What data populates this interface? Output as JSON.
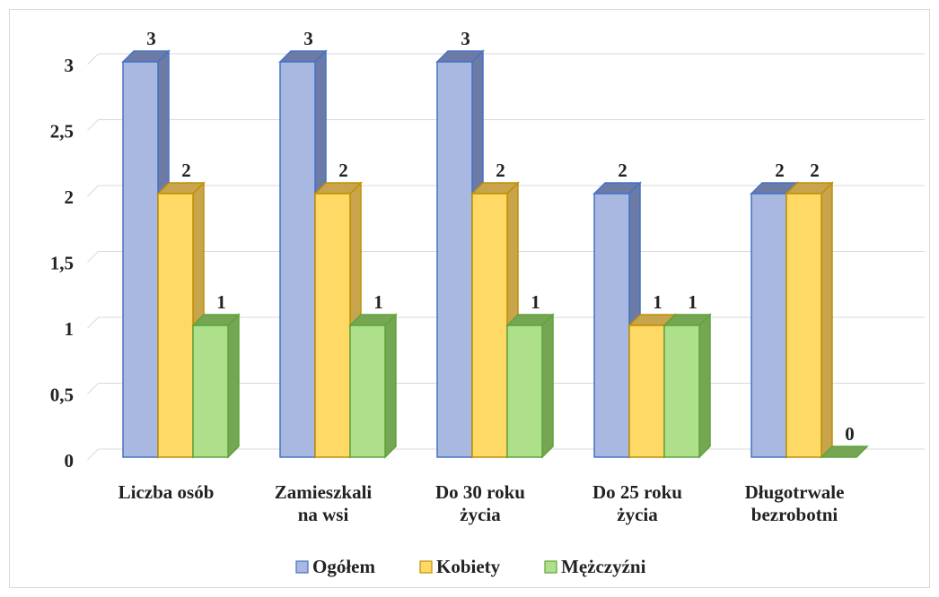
{
  "chart_data": {
    "type": "bar3d",
    "categories": [
      "Liczba osób",
      "Zamieszkali\nna wsi",
      "Do 30 roku\nżycia",
      "Do 25 roku\nżycia",
      "Długotrwale\nbezrobotni"
    ],
    "series": [
      {
        "name": "Ogółem",
        "color": "#a9b8e0",
        "edge": "#4472c4",
        "side": "#6c7aa6",
        "values": [
          3,
          3,
          3,
          2,
          2
        ]
      },
      {
        "name": "Kobiety",
        "color": "#ffd966",
        "edge": "#bf9000",
        "side": "#c8a44d",
        "values": [
          2,
          2,
          2,
          1,
          2
        ]
      },
      {
        "name": "Mężczyźni",
        "color": "#aee08c",
        "edge": "#5fa33a",
        "side": "#74a654",
        "values": [
          1,
          1,
          1,
          1,
          0
        ]
      }
    ],
    "ylim": [
      0,
      3
    ],
    "yticks": [
      0,
      {
        "value": 0.5,
        "label": "0,5"
      },
      1,
      {
        "value": 1.5,
        "label": "1,5"
      },
      2,
      {
        "value": 2.5,
        "label": "2,5"
      },
      3
    ],
    "grid": true,
    "legend": "bottom"
  }
}
